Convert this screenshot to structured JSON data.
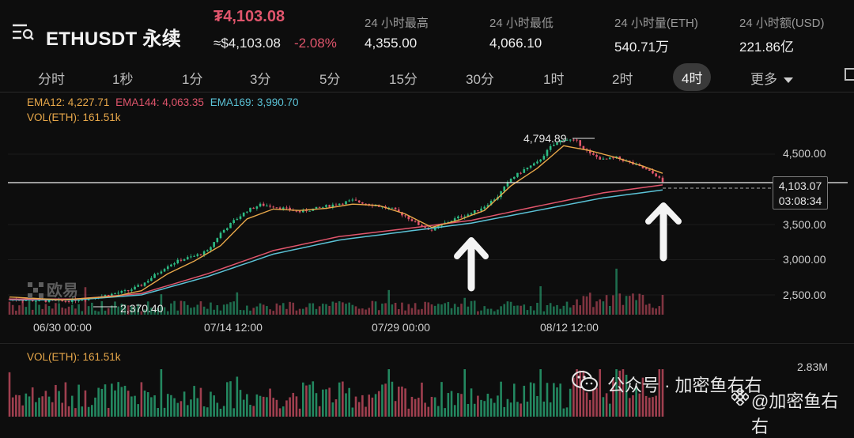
{
  "header": {
    "symbol": "ETHUSDT 永续",
    "last_price": "₮4,103.08",
    "approx_price": "≈$4,103.08",
    "change_pct": "-2.08%",
    "stats": [
      {
        "label": "24 小时最高",
        "value": "4,355.00"
      },
      {
        "label": "24 小时最低",
        "value": "4,066.10"
      },
      {
        "label": "24 小时量(ETH)",
        "value": "540.71万"
      },
      {
        "label": "24 小时额(USD)",
        "value": "221.86亿"
      }
    ]
  },
  "timeframes": {
    "items": [
      "分时",
      "1秒",
      "1分",
      "3分",
      "5分",
      "15分",
      "30分",
      "1时",
      "2时",
      "4时",
      "更多"
    ],
    "active": "4时"
  },
  "indicators": {
    "ema12": "EMA12: 4,227.71",
    "ema144": "EMA144: 4,063.35",
    "ema169": "EMA169: 3,990.70",
    "vol": "VOL(ETH): 161.51k",
    "vol_pane": "VOL(ETH): 161.51k",
    "vol_max": "2.83M"
  },
  "chart_data": {
    "type": "candlestick",
    "x_labels": [
      "06/30 00:00",
      "07/14 12:00",
      "07/29 00:00",
      "08/12 12:00"
    ],
    "y_ticks": [
      2500,
      3000,
      3500,
      4500
    ],
    "y_tick_labels": [
      "2,500.00",
      "3,000.00",
      "3,500.00",
      "4,500.00"
    ],
    "ylim": [
      2300,
      4950
    ],
    "annotations": {
      "high_label": "4,794.89",
      "low_label": "2,370.40",
      "current_price": "4,103.07",
      "countdown": "03:08:34"
    },
    "close_path": [
      [
        0,
        2440
      ],
      [
        8,
        2420
      ],
      [
        16,
        2410
      ],
      [
        24,
        2450
      ],
      [
        32,
        2520
      ],
      [
        36,
        2560
      ],
      [
        40,
        2640
      ],
      [
        44,
        2780
      ],
      [
        48,
        2920
      ],
      [
        52,
        3000
      ],
      [
        56,
        3050
      ],
      [
        60,
        3120
      ],
      [
        64,
        3380
      ],
      [
        68,
        3550
      ],
      [
        72,
        3700
      ],
      [
        76,
        3780
      ],
      [
        80,
        3760
      ],
      [
        84,
        3720
      ],
      [
        88,
        3680
      ],
      [
        92,
        3720
      ],
      [
        96,
        3760
      ],
      [
        100,
        3800
      ],
      [
        104,
        3840
      ],
      [
        108,
        3800
      ],
      [
        112,
        3760
      ],
      [
        116,
        3720
      ],
      [
        120,
        3620
      ],
      [
        124,
        3500
      ],
      [
        128,
        3420
      ],
      [
        132,
        3520
      ],
      [
        136,
        3600
      ],
      [
        140,
        3660
      ],
      [
        144,
        3760
      ],
      [
        148,
        3900
      ],
      [
        152,
        4150
      ],
      [
        156,
        4280
      ],
      [
        160,
        4380
      ],
      [
        164,
        4600
      ],
      [
        168,
        4720
      ],
      [
        172,
        4680
      ],
      [
        176,
        4500
      ],
      [
        180,
        4420
      ],
      [
        184,
        4450
      ],
      [
        188,
        4380
      ],
      [
        192,
        4300
      ],
      [
        196,
        4200
      ],
      [
        198,
        4103
      ]
    ],
    "ema12": [
      [
        0,
        2470
      ],
      [
        16,
        2430
      ],
      [
        32,
        2480
      ],
      [
        40,
        2560
      ],
      [
        48,
        2800
      ],
      [
        56,
        2980
      ],
      [
        64,
        3200
      ],
      [
        72,
        3580
      ],
      [
        80,
        3720
      ],
      [
        88,
        3700
      ],
      [
        96,
        3730
      ],
      [
        104,
        3790
      ],
      [
        112,
        3770
      ],
      [
        120,
        3650
      ],
      [
        128,
        3460
      ],
      [
        136,
        3560
      ],
      [
        144,
        3700
      ],
      [
        152,
        4050
      ],
      [
        160,
        4300
      ],
      [
        168,
        4620
      ],
      [
        176,
        4550
      ],
      [
        184,
        4450
      ],
      [
        192,
        4330
      ],
      [
        198,
        4228
      ]
    ],
    "ema144": [
      [
        0,
        2440
      ],
      [
        20,
        2440
      ],
      [
        40,
        2520
      ],
      [
        60,
        2800
      ],
      [
        80,
        3130
      ],
      [
        100,
        3330
      ],
      [
        120,
        3440
      ],
      [
        140,
        3560
      ],
      [
        160,
        3760
      ],
      [
        180,
        3950
      ],
      [
        198,
        4063
      ]
    ],
    "ema169": [
      [
        0,
        2430
      ],
      [
        20,
        2430
      ],
      [
        40,
        2500
      ],
      [
        60,
        2760
      ],
      [
        80,
        3080
      ],
      [
        100,
        3280
      ],
      [
        120,
        3400
      ],
      [
        140,
        3520
      ],
      [
        160,
        3700
      ],
      [
        180,
        3880
      ],
      [
        198,
        3991
      ]
    ],
    "volume_max": "2.83M"
  },
  "colors": {
    "up": "#2ebd85",
    "down": "#e0556c",
    "ema12": "#e8a84a",
    "ema144": "#e0556c",
    "ema169": "#5bc2d6"
  },
  "annotation_arrows": [
    "arrow-up-1",
    "arrow-up-2"
  ],
  "watermarks": {
    "okx": "欧易",
    "wechat": "公众号 · 加密鱼右右",
    "binance": "@加密鱼右右"
  }
}
